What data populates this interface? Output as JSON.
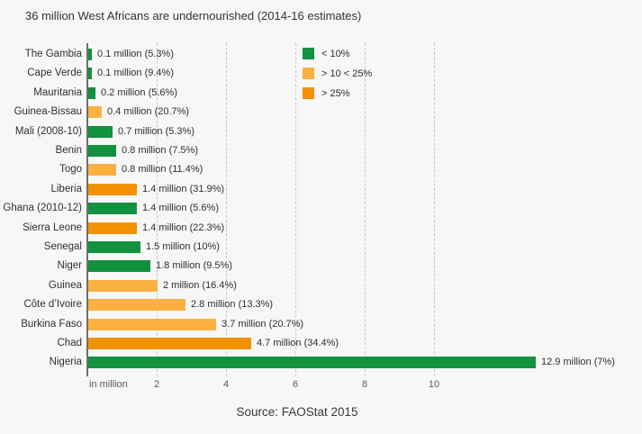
{
  "title": "36 million West Africans are undernourished (2014-16 estimates)",
  "source": "Source: FAOStat 2015",
  "palette": {
    "green": "#12913f",
    "light_orange": "#fbb042",
    "dark_orange": "#f39200",
    "axis": "#6f6f6f",
    "gridline": "#c9c9c9",
    "background": "#f7f7f7"
  },
  "legend": {
    "items": [
      {
        "label": "< 10%",
        "color_key": "green"
      },
      {
        "label": "> 10 < 25%",
        "color_key": "light_orange"
      },
      {
        "label": "> 25%",
        "color_key": "dark_orange"
      }
    ]
  },
  "chart_data": {
    "type": "bar",
    "orientation": "horizontal",
    "title": "36 million West Africans are undernourished (2014-16 estimates)",
    "xlabel": "in million",
    "xlim": [
      0,
      13
    ],
    "xticks": [
      2,
      4,
      6,
      8,
      10
    ],
    "grid": "vertical-dashed",
    "legend_position": "top-inside",
    "categories": [
      "The Gambia",
      "Cape Verde",
      "Mauritania",
      "Guinea-Bissau",
      "Mali (2008-10)",
      "Benin",
      "Togo",
      "Liberia",
      "Ghana (2010-12)",
      "Sierra Leone",
      "Senegal",
      "Niger",
      "Guinea",
      "Côte d’Ivoire",
      "Burkina Faso",
      "Chad",
      "Nigeria"
    ],
    "values": [
      0.1,
      0.1,
      0.2,
      0.4,
      0.7,
      0.8,
      0.8,
      1.4,
      1.4,
      1.4,
      1.5,
      1.8,
      2,
      2.8,
      3.7,
      4.7,
      12.9
    ],
    "percentages": [
      5.3,
      9.4,
      5.6,
      20.7,
      5.3,
      7.5,
      11.4,
      31.9,
      5.6,
      22.3,
      10,
      9.5,
      16.4,
      13.3,
      20.7,
      34.4,
      7
    ],
    "bar_labels": [
      "0.1 million (5.3%)",
      "0.1 million (9.4%)",
      "0.2 million (5.6%)",
      "0.4 million (20.7%)",
      "0.7 million (5.3%)",
      "0.8 million (7.5%)",
      "0.8 million (11.4%)",
      "1.4 million (31.9%)",
      "1.4 million (5.6%)",
      "1.4 million (22.3%)",
      "1.5 million (10%)",
      "1.8 million (9.5%)",
      "2 million (16.4%)",
      "2.8 million (13.3%)",
      "3.7 million (20.7%)",
      "4.7 million (34.4%)",
      "12.9 million (7%)"
    ],
    "color_keys": [
      "green",
      "green",
      "green",
      "light_orange",
      "green",
      "green",
      "light_orange",
      "dark_orange",
      "green",
      "dark_orange",
      "green",
      "green",
      "light_orange",
      "light_orange",
      "light_orange",
      "dark_orange",
      "green"
    ]
  }
}
